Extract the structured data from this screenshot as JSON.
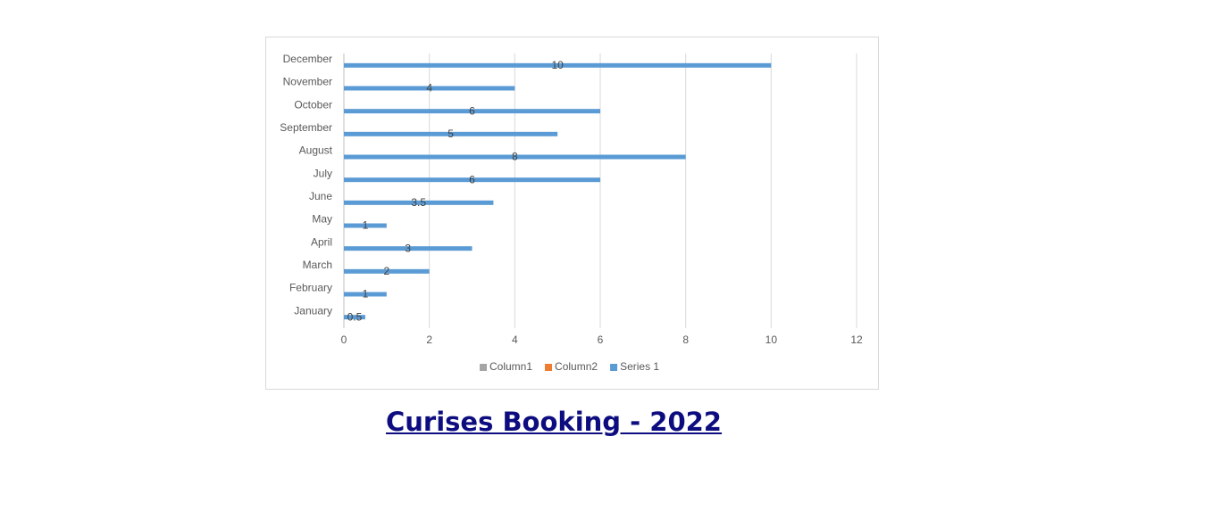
{
  "chart_data": {
    "type": "bar",
    "orientation": "horizontal",
    "title": "Curises Booking - 2022",
    "categories": [
      "January",
      "February",
      "March",
      "April",
      "May",
      "June",
      "July",
      "August",
      "September",
      "October",
      "November",
      "December"
    ],
    "series": [
      {
        "name": "Column1",
        "color": "#a5a5a5",
        "values": [
          null,
          null,
          null,
          null,
          null,
          null,
          null,
          null,
          null,
          null,
          null,
          null
        ]
      },
      {
        "name": "Column2",
        "color": "#ed7d31",
        "values": [
          null,
          null,
          null,
          null,
          null,
          null,
          null,
          null,
          null,
          null,
          null,
          null
        ]
      },
      {
        "name": "Series 1",
        "color": "#5b9bd5",
        "values": [
          0.5,
          1,
          2,
          3,
          1,
          3.5,
          6,
          8,
          5,
          6,
          4,
          10
        ]
      }
    ],
    "xlim": [
      0,
      12
    ],
    "xticks": [
      0,
      2,
      4,
      6,
      8,
      10,
      12
    ],
    "grid": true,
    "legend": "bottom"
  }
}
